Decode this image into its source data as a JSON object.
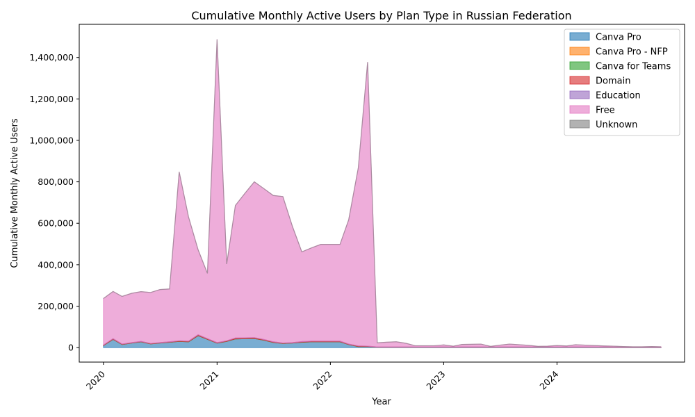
{
  "chart_data": {
    "type": "area",
    "stacked": true,
    "title": "Cumulative Monthly Active Users by Plan Type in Russian Federation",
    "xlabel": "Year",
    "ylabel": "Cumulative Monthly Active Users",
    "xlim": [
      "2019-10-15",
      "2025-02-15"
    ],
    "ylim": [
      -70000,
      1560000
    ],
    "grid": false,
    "legend_position": "top-right",
    "x_tick_labels": [
      "2020",
      "2021",
      "2022",
      "2023",
      "2024"
    ],
    "x_tick_dates": [
      "2020-01-01",
      "2021-01-01",
      "2022-01-01",
      "2023-01-01",
      "2024-01-01"
    ],
    "x_tick_rotation": 45,
    "y_ticks": [
      0,
      200000,
      400000,
      600000,
      800000,
      1000000,
      1200000,
      1400000
    ],
    "y_tick_labels": [
      "0",
      "200,000",
      "400,000",
      "600,000",
      "800,000",
      "1,000,000",
      "1,200,000",
      "1,400,000"
    ],
    "x": [
      "2020-01-01",
      "2020-02-01",
      "2020-03-01",
      "2020-04-01",
      "2020-05-01",
      "2020-06-01",
      "2020-07-01",
      "2020-08-01",
      "2020-09-01",
      "2020-10-01",
      "2020-11-01",
      "2020-12-01",
      "2021-01-01",
      "2021-02-01",
      "2021-03-01",
      "2021-04-01",
      "2021-05-01",
      "2021-06-01",
      "2021-07-01",
      "2021-08-01",
      "2021-09-01",
      "2021-10-01",
      "2021-11-01",
      "2021-12-01",
      "2022-01-01",
      "2022-02-01",
      "2022-03-01",
      "2022-04-01",
      "2022-05-01",
      "2022-06-01",
      "2022-07-01",
      "2022-08-01",
      "2022-09-01",
      "2022-10-01",
      "2022-11-01",
      "2022-12-01",
      "2023-01-01",
      "2023-02-01",
      "2023-03-01",
      "2023-04-01",
      "2023-05-01",
      "2023-06-01",
      "2023-07-01",
      "2023-08-01",
      "2023-09-01",
      "2023-10-01",
      "2023-11-01",
      "2023-12-01",
      "2024-01-01",
      "2024-02-01",
      "2024-03-01",
      "2024-04-01",
      "2024-05-01",
      "2024-06-01",
      "2024-07-01",
      "2024-08-01",
      "2024-09-01",
      "2024-10-01",
      "2024-11-01",
      "2024-12-01"
    ],
    "series": [
      {
        "name": "Canva Pro",
        "color": "#1f77b4",
        "values": [
          10000,
          40000,
          15000,
          22000,
          28000,
          18000,
          22000,
          26000,
          30000,
          28000,
          58000,
          40000,
          22000,
          30000,
          42000,
          43000,
          44000,
          36000,
          25000,
          20000,
          22000,
          26000,
          28000,
          28000,
          28000,
          28000,
          15000,
          5000,
          5000,
          2000,
          2000,
          2000,
          2000,
          2000,
          2000,
          2000,
          2000,
          2000,
          2000,
          2000,
          2000,
          2000,
          2000,
          2000,
          2000,
          2000,
          2000,
          2000,
          2000,
          2000,
          2000,
          2000,
          2000,
          2000,
          1500,
          1500,
          1500,
          1500,
          1500,
          1500
        ]
      },
      {
        "name": "Canva Pro - NFP",
        "color": "#ff7f0e",
        "values": [
          0,
          0,
          0,
          0,
          0,
          0,
          0,
          0,
          0,
          0,
          0,
          0,
          0,
          0,
          0,
          0,
          0,
          0,
          0,
          0,
          0,
          0,
          0,
          0,
          0,
          0,
          0,
          0,
          0,
          0,
          0,
          0,
          0,
          0,
          0,
          0,
          0,
          0,
          0,
          0,
          0,
          0,
          0,
          0,
          0,
          0,
          0,
          0,
          0,
          0,
          0,
          0,
          0,
          0,
          0,
          0,
          0,
          0,
          0,
          0
        ]
      },
      {
        "name": "Canva for Teams",
        "color": "#2ca02c",
        "values": [
          0,
          0,
          0,
          0,
          0,
          0,
          0,
          0,
          0,
          0,
          0,
          0,
          0,
          0,
          0,
          0,
          0,
          0,
          0,
          0,
          0,
          0,
          0,
          0,
          0,
          0,
          0,
          0,
          0,
          0,
          0,
          0,
          0,
          0,
          0,
          0,
          0,
          0,
          0,
          0,
          0,
          0,
          0,
          0,
          0,
          0,
          0,
          0,
          0,
          0,
          0,
          0,
          0,
          0,
          0,
          0,
          0,
          0,
          0,
          0
        ]
      },
      {
        "name": "Domain",
        "color": "#d62728",
        "values": [
          2000,
          3000,
          2000,
          2000,
          2000,
          2000,
          2000,
          2000,
          3000,
          3000,
          4000,
          3000,
          2000,
          3000,
          4000,
          4000,
          4000,
          3000,
          3000,
          2000,
          2000,
          3000,
          3000,
          3000,
          3000,
          3000,
          2000,
          3000,
          2000,
          1000,
          1000,
          1000,
          1000,
          1000,
          1000,
          1000,
          1000,
          1000,
          1000,
          1000,
          1000,
          1000,
          1000,
          1000,
          1000,
          1000,
          1000,
          1000,
          1000,
          1000,
          1000,
          1000,
          1000,
          1000,
          500,
          500,
          500,
          500,
          500,
          500
        ]
      },
      {
        "name": "Education",
        "color": "#9467bd",
        "values": [
          0,
          0,
          0,
          0,
          0,
          0,
          0,
          0,
          0,
          0,
          0,
          0,
          0,
          0,
          0,
          0,
          0,
          0,
          0,
          0,
          0,
          0,
          0,
          0,
          0,
          0,
          0,
          0,
          0,
          0,
          0,
          0,
          0,
          0,
          0,
          0,
          0,
          0,
          0,
          0,
          0,
          0,
          0,
          0,
          0,
          0,
          0,
          0,
          0,
          0,
          0,
          0,
          0,
          0,
          0,
          0,
          0,
          0,
          0,
          0
        ]
      },
      {
        "name": "Free",
        "color": "#e377c2",
        "values": [
          225000,
          228000,
          230000,
          238000,
          240000,
          246000,
          256000,
          255000,
          815000,
          600000,
          410000,
          315000,
          1464000,
          370000,
          640000,
          698000,
          752000,
          728000,
          706000,
          707000,
          560000,
          433000,
          450000,
          467000,
          467000,
          467000,
          600000,
          860000,
          1371000,
          20000,
          23000,
          25000,
          18000,
          6000,
          6000,
          6000,
          10000,
          4000,
          12000,
          13000,
          14000,
          3000,
          9000,
          14000,
          11000,
          8000,
          3000,
          4000,
          7000,
          5000,
          11000,
          9000,
          7000,
          5000,
          5000,
          3000,
          2000,
          2000,
          3000,
          2000
        ]
      },
      {
        "name": "Unknown",
        "color": "#7f7f7f",
        "values": [
          0,
          0,
          0,
          0,
          0,
          0,
          0,
          0,
          0,
          0,
          0,
          0,
          0,
          0,
          0,
          0,
          0,
          0,
          0,
          0,
          0,
          0,
          0,
          0,
          0,
          0,
          0,
          0,
          0,
          0,
          0,
          0,
          0,
          0,
          0,
          0,
          0,
          0,
          0,
          0,
          0,
          0,
          0,
          0,
          0,
          0,
          0,
          0,
          0,
          0,
          0,
          0,
          0,
          0,
          0,
          0,
          0,
          0,
          0,
          0
        ]
      }
    ]
  }
}
